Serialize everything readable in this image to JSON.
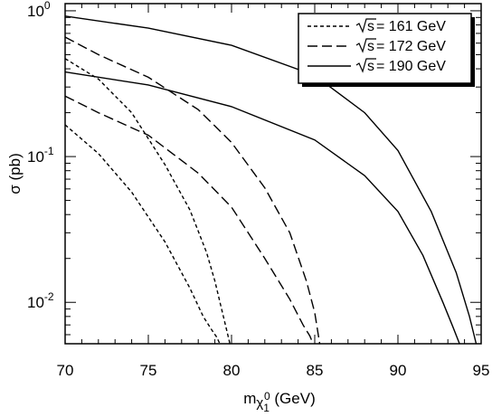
{
  "chart_data": {
    "type": "line",
    "xlabel": "m",
    "xlabel_sub": "χ",
    "xlabel_sub2": "1",
    "xlabel_sup": "0",
    "xlabel_unit": " (GeV)",
    "ylabel": "σ (pb)",
    "xlim": [
      70,
      95
    ],
    "ylim": [
      0.0052,
      1.12
    ],
    "y_scale": "log",
    "x_ticks": [
      "70",
      "75",
      "80",
      "85",
      "90",
      "95"
    ],
    "y_ticks": [
      {
        "value": 1,
        "base": "10",
        "exp": "0"
      },
      {
        "value": 0.1,
        "base": "10",
        "exp": "-1"
      },
      {
        "value": 0.01,
        "base": "10",
        "exp": "-2"
      }
    ],
    "legend_position": "top-right",
    "grid": false,
    "series": [
      {
        "name": "√s = 161 GeV",
        "sqrt_label": "s",
        "legend_value": " = 161 GeV",
        "dash": "short",
        "curves": [
          {
            "x": [
              70,
              72,
              74,
              76,
              77.5,
              78.5,
              79,
              79.4,
              79.7,
              79.9
            ],
            "y": [
              0.47,
              0.34,
              0.2,
              0.088,
              0.043,
              0.022,
              0.014,
              0.009,
              0.0065,
              0.0052
            ]
          },
          {
            "x": [
              70,
              72,
              74,
              76,
              77.5,
              78.3,
              78.8,
              79.1,
              79.3
            ],
            "y": [
              0.165,
              0.105,
              0.057,
              0.026,
              0.0125,
              0.008,
              0.0065,
              0.0058,
              0.0052
            ]
          }
        ]
      },
      {
        "name": "√s = 172 GeV",
        "sqrt_label": "s",
        "legend_value": " = 172 GeV",
        "dash": "long",
        "curves": [
          {
            "x": [
              70,
              72,
              75,
              78,
              80,
              82,
              83.5,
              84.5,
              85,
              85.3
            ],
            "y": [
              0.66,
              0.5,
              0.35,
              0.21,
              0.125,
              0.061,
              0.03,
              0.014,
              0.0085,
              0.0052
            ]
          },
          {
            "x": [
              70,
              72,
              75,
              78,
              80,
              82,
              83.5,
              84.3,
              84.7,
              84.9
            ],
            "y": [
              0.26,
              0.2,
              0.14,
              0.077,
              0.045,
              0.02,
              0.0105,
              0.007,
              0.0059,
              0.0052
            ]
          }
        ]
      },
      {
        "name": "√s = 190 GeV",
        "sqrt_label": "s",
        "legend_value": " = 190 GeV",
        "dash": "solid",
        "curves": [
          {
            "x": [
              70,
              75,
              80,
              85,
              88,
              90,
              92,
              93.5,
              94.3,
              94.7
            ],
            "y": [
              0.92,
              0.76,
              0.58,
              0.36,
              0.2,
              0.11,
              0.042,
              0.016,
              0.008,
              0.0052
            ]
          },
          {
            "x": [
              70,
              75,
              80,
              85,
              88,
              90,
              91.5,
              92.7,
              93.3,
              93.7
            ],
            "y": [
              0.38,
              0.31,
              0.22,
              0.13,
              0.074,
              0.042,
              0.021,
              0.01,
              0.0068,
              0.0052
            ]
          }
        ]
      }
    ]
  }
}
